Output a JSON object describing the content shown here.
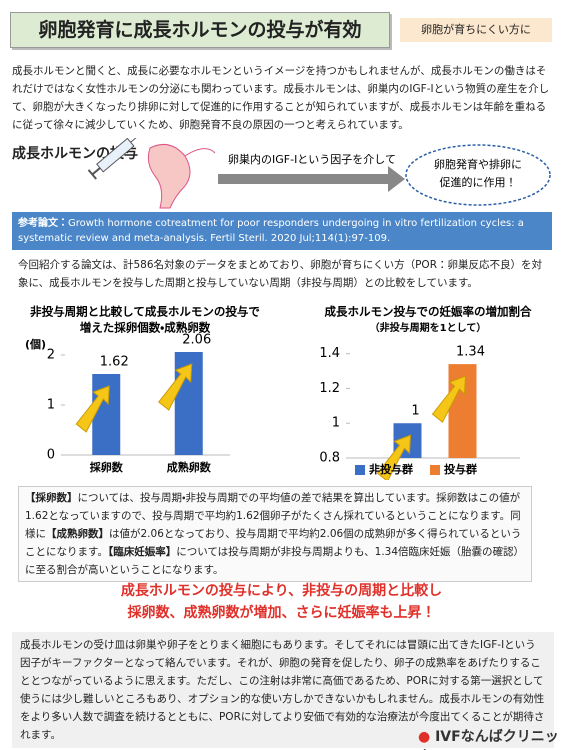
{
  "header": {
    "title": "卵胞発育に成長ホルモンの投与が有効",
    "tag": "卵胞が育ちにくい方に"
  },
  "intro": "成長ホルモンと聞くと、成長に必要なホルモンというイメージを持つかもしれませんが、成長ホルモンの働きはそれだけではなく女性ホルモンの分泌にも関わっています。成長ホルモンは、卵巣内のIGF-Iという物質の産生を介して、卵胞が大きくなったり排卵に対して促進的に作用することが知られていますが、成長ホルモンは年齢を重ねるに従って徐々に減少していくため、卵胞発育不良の原因の一つと考えられています。",
  "flow": {
    "title": "成長ホルモンの投与",
    "arrow_text": "卵巣内のIGF-Iという因子を介して",
    "result": [
      "卵胞発育や排卵に",
      "促進的に作用！"
    ]
  },
  "reference": {
    "label": "参考論文：",
    "text": "Growth hormone cotreatment for poor responders undergoing in vitro fertilization cycles: a systematic review and meta-analysis.  Fertil Steril. 2020 Jul;114(1):97-109."
  },
  "summary": "今回紹介する論文は、計586名対象のデータをまとめており、卵胞が育ちにくい方（POR：卵巣反応不良）を対象に、成長ホルモンを投与した周期と投与していない周期（非投与周期）との比較をしています。",
  "chart_data": [
    {
      "type": "bar",
      "title": [
        "非投与周期と比較して成長ホルモンの投与で",
        "増えた採卵個数・成熟卵数"
      ],
      "y_label": "(個)",
      "categories": [
        "採卵数",
        "成熟卵数"
      ],
      "values": [
        1.62,
        2.06
      ],
      "color": "#3b6fc6",
      "ylim": [
        0,
        2.2
      ],
      "yticks": [
        0,
        1,
        2
      ]
    },
    {
      "type": "bar",
      "title": [
        "成長ホルモン投与での妊娠率の増加割合",
        "（非投与周期を1として）"
      ],
      "categories": [
        null
      ],
      "series": [
        {
          "name": "非投与群",
          "color": "#3b6fc6",
          "values": [
            1
          ]
        },
        {
          "name": "投与群",
          "color": "#ed7d31",
          "values": [
            1.34
          ]
        }
      ],
      "ylim": [
        0.8,
        1.45
      ],
      "yticks": [
        0.8,
        1,
        1.2,
        1.4
      ],
      "legend": "bottom"
    }
  ],
  "explanation": [
    "【採卵数】",
    "については、投与周期・非投与周期での平均値の差で結果を算出しています。採卵数はこの値が1.62となっていますので、投与周期で平均約1.62個卵子がたくさん採れているということになります。同様に",
    "【成熟卵数】",
    "は値が2.06となっており、投与周期で平均約2.06個の成熟卵が多く得られているということになります。",
    "【臨床妊娠率】",
    "については投与周期が非投与周期よりも、1.34倍臨床妊娠（胎嚢の確認）に至る割合が高いということになります。"
  ],
  "conclusion": [
    "成長ホルモンの投与により、非投与の周期と比較し",
    "採卵数、成熟卵数が増加、さらに妊娠率も上昇！"
  ],
  "closing": "成長ホルモンの受け皿は卵巣や卵子をとりまく細胞にもあります。そしてそれには冒頭に出てきたIGF-Iという因子がキーファクターとなって絡んでいます。それが、卵胞の発育を促したり、卵子の成熟率をあげたりすることとつながっているように思えます。ただし、この注射は非常に高価であるため、PORに対する第一選択として使うには少し難しいところもあり、オプション的な使い方しかできないかもしれません。成長ホルモンの有効性をより多い人数で調査を続けるとともに、PORに対してより安価で有効的な治療法が今度出てくることが期待されます。",
  "logo": "IVFなんばクリニック"
}
